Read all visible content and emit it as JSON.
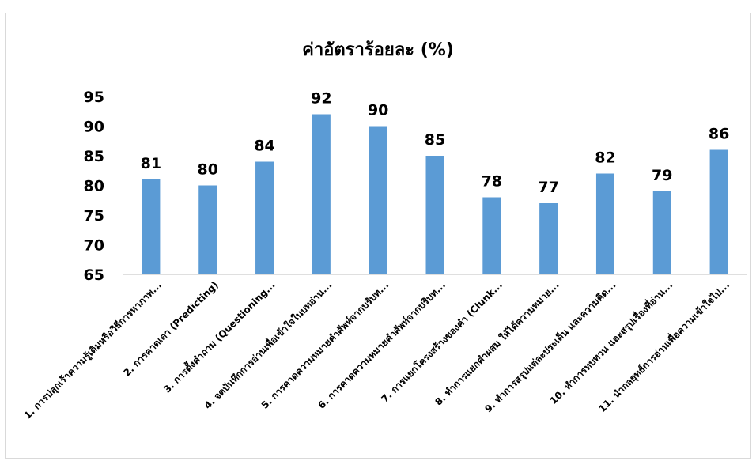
{
  "chart_data": {
    "type": "bar",
    "title": "ค่าอัตราร้อยละ (%)",
    "xlabel": "",
    "ylabel": "",
    "ylim": [
      65,
      95
    ],
    "yticks": [
      65,
      70,
      75,
      80,
      85,
      90,
      95
    ],
    "grid": false,
    "legend": "none",
    "bar_color": "#5b9bd5",
    "categories": [
      "1. การปลุกเร้าความรู้เดิมหรือวิธีการหาภาพ...",
      "2. การคาดเดา (Predicting)",
      "3. การตั้งคำถาม (Questioning...",
      "4. จดบันทึกการอ่านเพื่อเข้าใจในบทอ่าน...",
      "5. การคาดความหมายคำศัพท์จากบริบท...",
      "6. การคาดความหมายคำศัพท์จากบริบท...",
      "7. การแยกโครงสร้างของคำ (Clunk...",
      "8. ทำการแยกคำผสม ให้ได้ความหมาย...",
      "9. ทำการสรุปแต่ละประเด็น และความคิด...",
      "10. ทำการทบทวน และสรุปเรื่องที่อ่าน...",
      "11. นำกลยุทธ์การอ่านเพื่อความเข้าใจไป..."
    ],
    "values": [
      81,
      80,
      84,
      92,
      90,
      85,
      78,
      77,
      82,
      79,
      86
    ]
  }
}
